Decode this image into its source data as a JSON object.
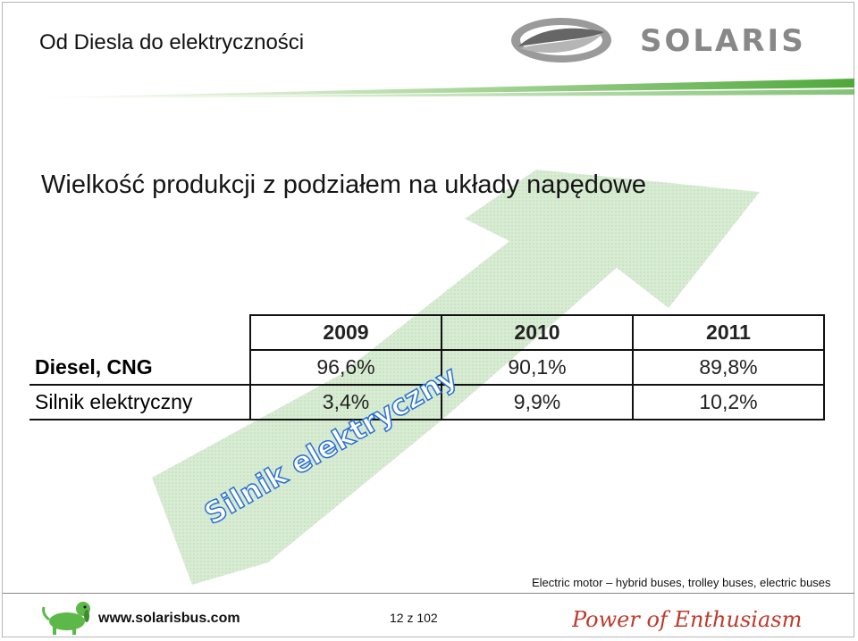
{
  "slide": {
    "title": "Od Diesla do elektryczności",
    "headline": "Wielkość produkcji z podziałem na układy napędowe",
    "logo_text": "SOLARIS"
  },
  "table": {
    "years": [
      "2009",
      "2010",
      "2011"
    ],
    "rows": [
      {
        "label": "Diesel, CNG",
        "values": [
          "96,6%",
          "90,1%",
          "89,8%"
        ]
      },
      {
        "label": "Silnik elektryczny",
        "values": [
          "3,4%",
          "9,9%",
          "10,2%"
        ]
      }
    ]
  },
  "diagonal_label": "Silnik elektryczny",
  "caption": "Electric motor – hybrid  buses, trolley buses, electric buses",
  "footer": {
    "url": "www.solarisbus.com",
    "page": "12 z 102",
    "tagline": "Power of Enthusiasm"
  },
  "colors": {
    "arrow_green": "#cfe6c9",
    "stripe_green": "#4fa83a",
    "label_blue": "#2a6fd6"
  }
}
